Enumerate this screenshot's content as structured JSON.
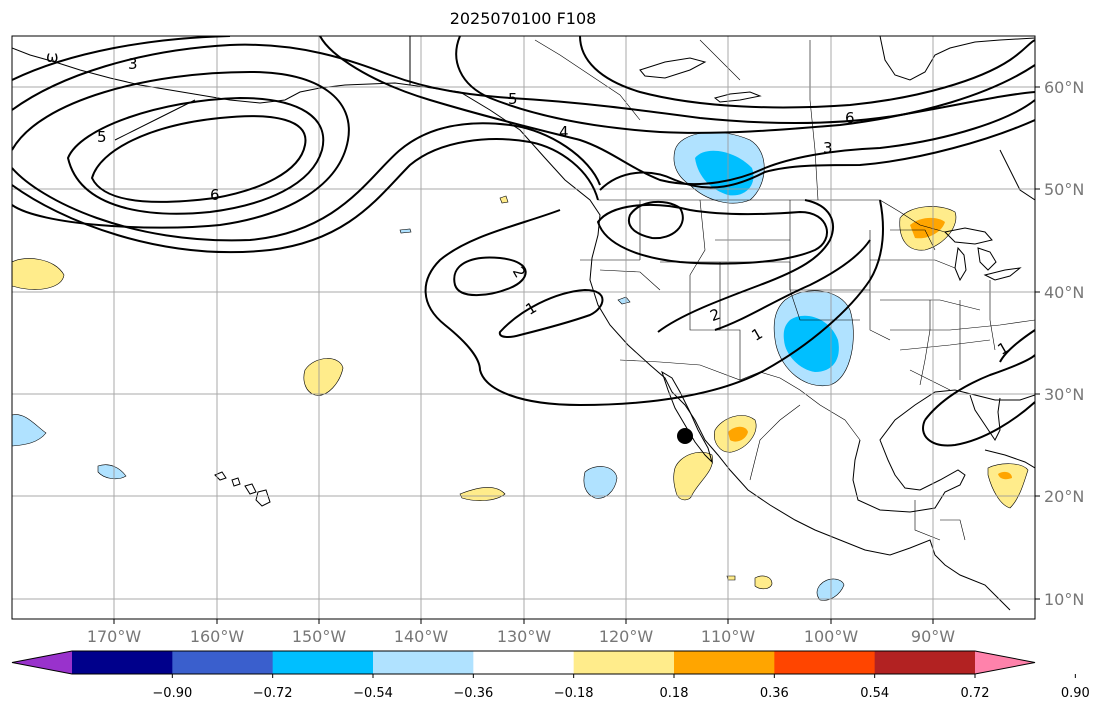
{
  "title": "2025070100 F108",
  "map": {
    "projection": "Mercator",
    "lon_range": [
      -180,
      -80
    ],
    "lat_range": [
      8,
      65
    ],
    "lon_ticks": [
      {
        "lon": -170,
        "label": "170°W"
      },
      {
        "lon": -160,
        "label": "160°W"
      },
      {
        "lon": -150,
        "label": "150°W"
      },
      {
        "lon": -140,
        "label": "140°W"
      },
      {
        "lon": -130,
        "label": "130°W"
      },
      {
        "lon": -120,
        "label": "120°W"
      },
      {
        "lon": -110,
        "label": "110°W"
      },
      {
        "lon": -100,
        "label": "100°W"
      },
      {
        "lon": -90,
        "label": "90°W"
      }
    ],
    "lat_ticks": [
      {
        "lat": 60,
        "label": "60°N"
      },
      {
        "lat": 50,
        "label": "50°N"
      },
      {
        "lat": 40,
        "label": "40°N"
      },
      {
        "lat": 30,
        "label": "30°N"
      },
      {
        "lat": 20,
        "label": "20°N"
      },
      {
        "lat": 10,
        "label": "10°N"
      }
    ],
    "grid": true,
    "contour_labels": [
      "3",
      "5",
      "6",
      "ω",
      "5",
      "4",
      "6",
      "3",
      "2",
      "1",
      "2",
      "1",
      "1"
    ],
    "marker": {
      "lon": -114.2,
      "lat": 25.8,
      "symbol": "black-dot"
    }
  },
  "colorbar": {
    "orientation": "horizontal",
    "extend": "both",
    "ticks": [
      "−0.90",
      "−0.72",
      "−0.54",
      "−0.36",
      "−0.18",
      "0.18",
      "0.36",
      "0.54",
      "0.72",
      "0.90"
    ],
    "colors": [
      "#9932cc",
      "#00008b",
      "#3a5fcd",
      "#00bfff",
      "#b0e2ff",
      "#ffffff",
      "#ffec8b",
      "#ffa500",
      "#ff4500",
      "#b22222",
      "#ff82ab"
    ]
  }
}
